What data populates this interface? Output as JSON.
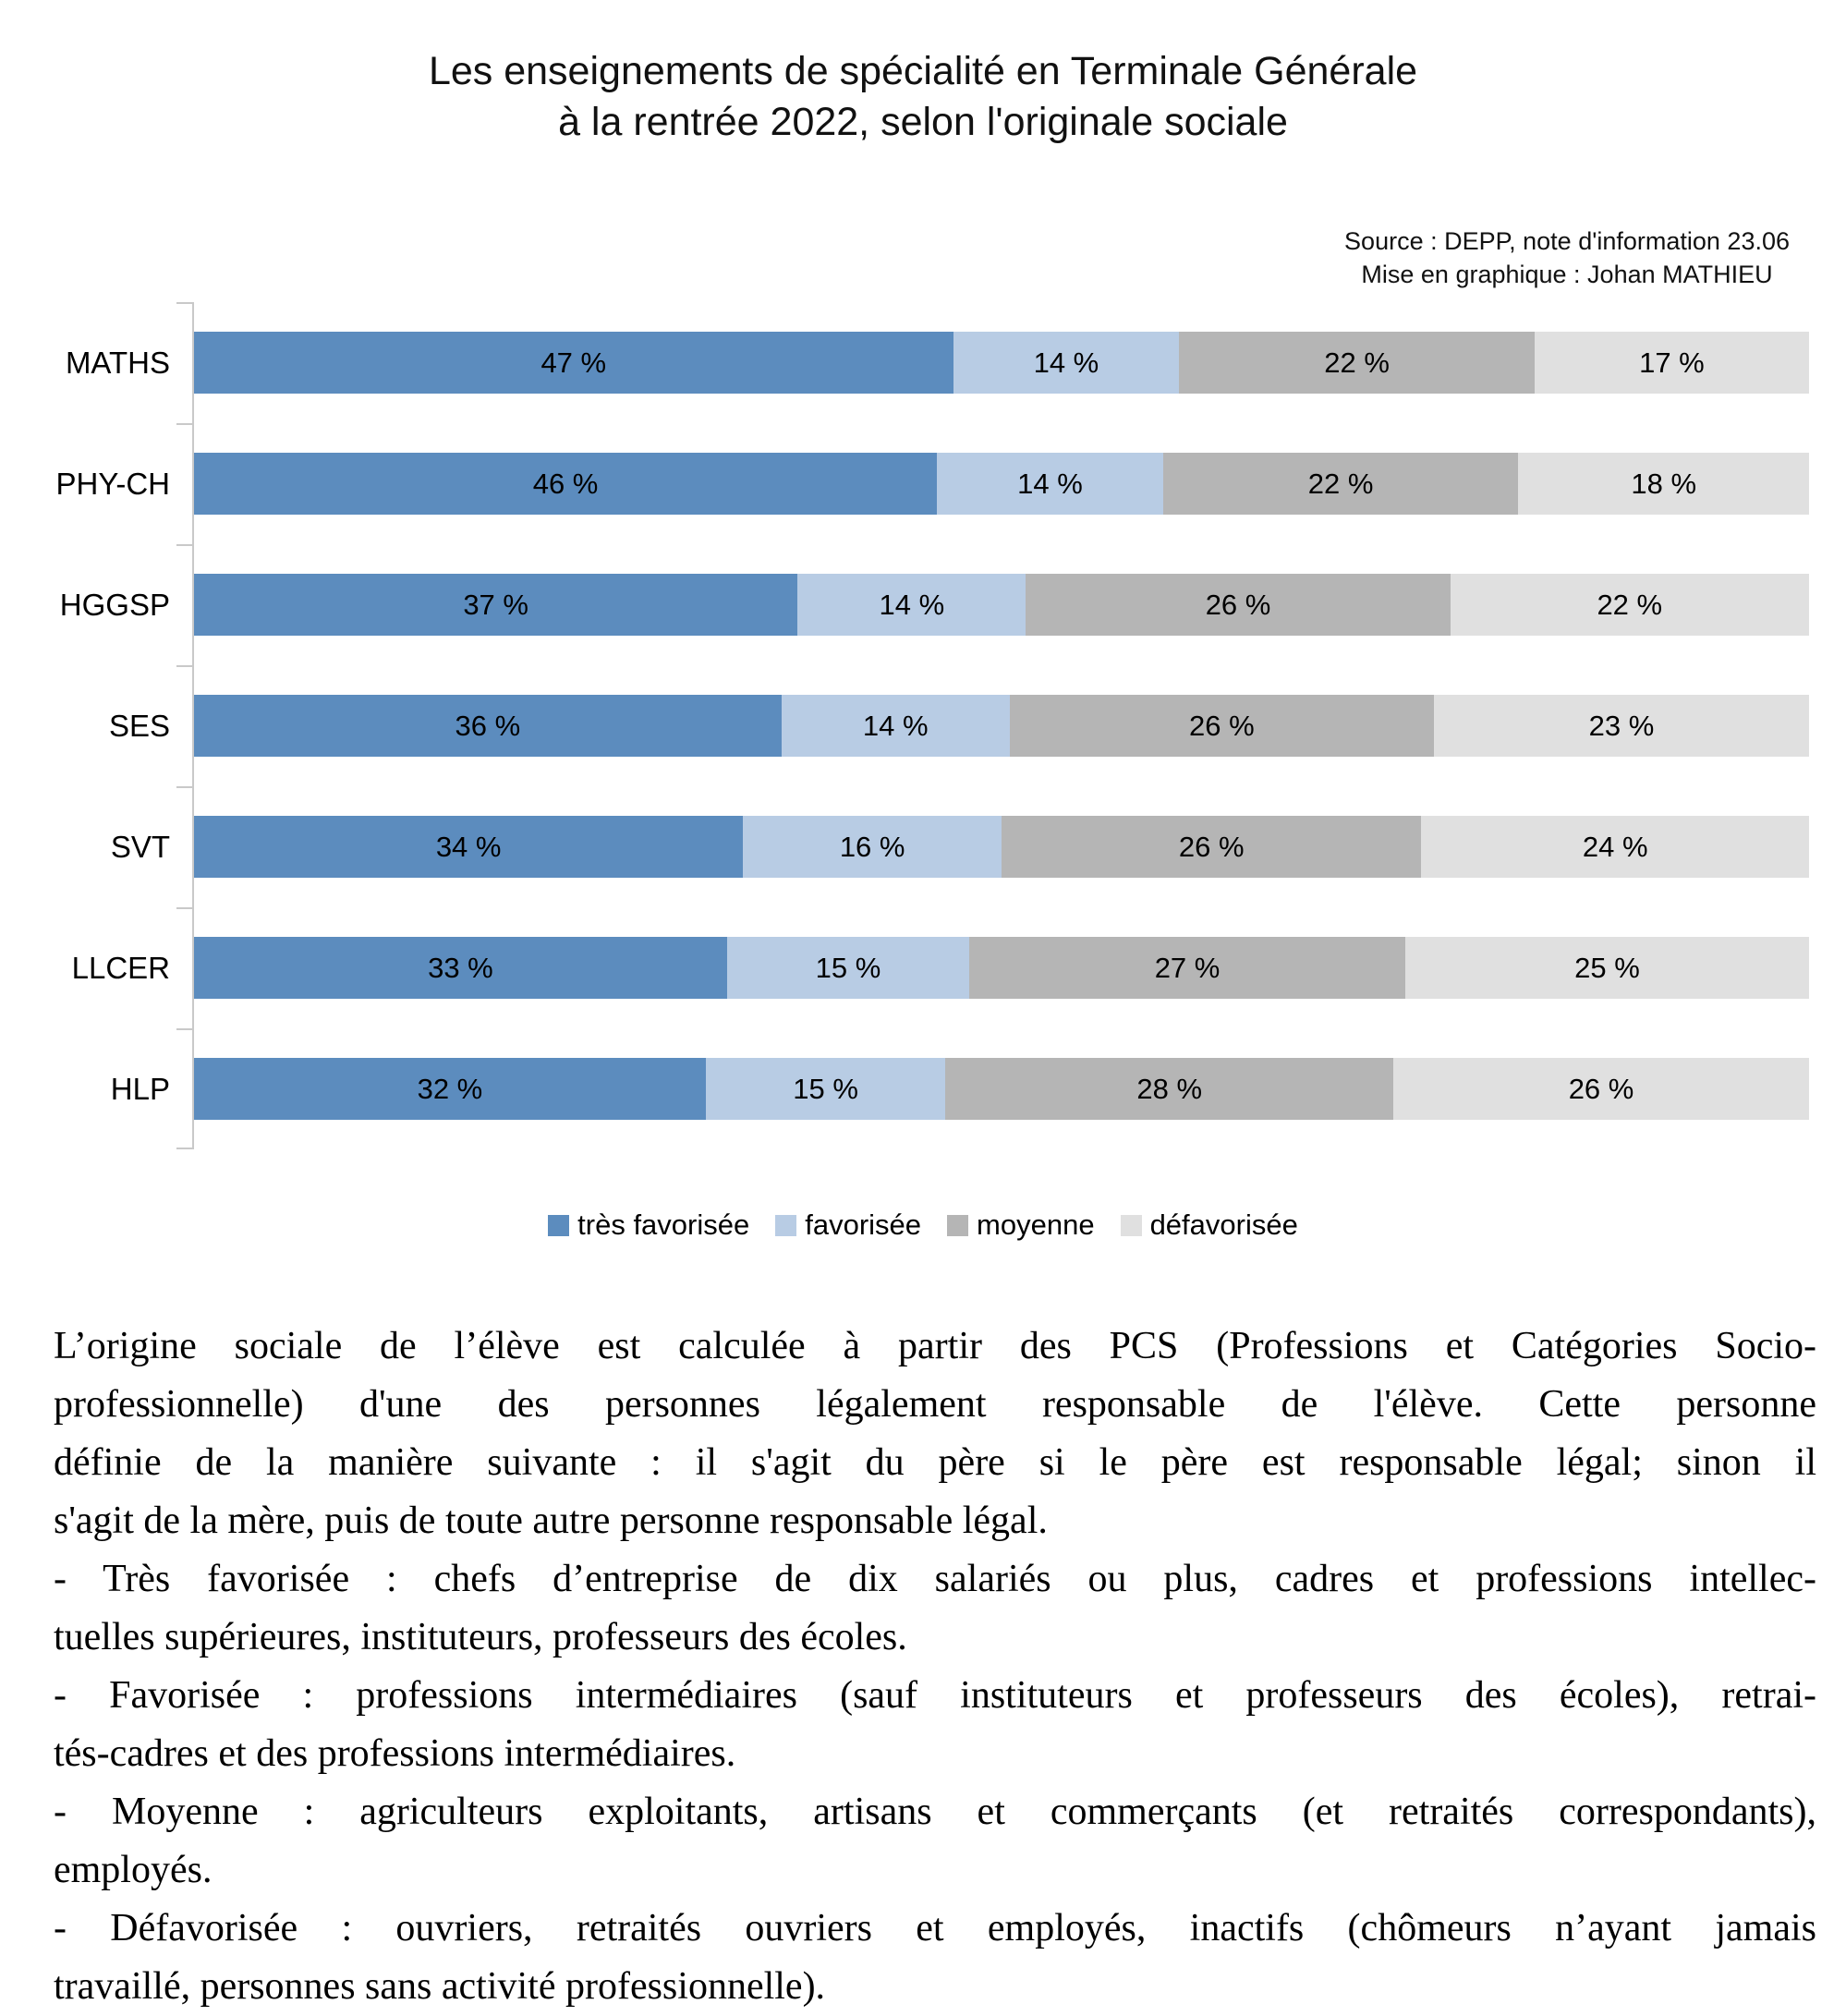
{
  "title": {
    "line1": "Les enseignements de spécialité en Terminale Générale",
    "line2": "à la rentrée 2022, selon l'originale sociale"
  },
  "source": {
    "line1": "Source : DEPP, note d'information 23.06",
    "line2": "Mise en graphique : Johan MATHIEU"
  },
  "chart_data": {
    "type": "bar",
    "orientation": "horizontal",
    "stacked": true,
    "unit": "%",
    "value_suffix": " %",
    "title": "Les enseignements de spécialité en Terminale Générale à la rentrée 2022, selon l'originale sociale",
    "categories": [
      "MATHS",
      "PHY-CH",
      "HGGSP",
      "SES",
      "SVT",
      "LLCER",
      "HLP"
    ],
    "series": [
      {
        "name": "très favorisée",
        "color": "#5C8CBE",
        "values": [
          47,
          46,
          37,
          36,
          34,
          33,
          32
        ]
      },
      {
        "name": "favorisée",
        "color": "#B8CCE4",
        "values": [
          14,
          14,
          14,
          14,
          16,
          15,
          15
        ]
      },
      {
        "name": "moyenne",
        "color": "#B5B5B5",
        "values": [
          22,
          22,
          26,
          26,
          26,
          27,
          28
        ]
      },
      {
        "name": "défavorisée",
        "color": "#E0E0E0",
        "values": [
          17,
          18,
          22,
          23,
          24,
          25,
          26
        ]
      }
    ],
    "legend_position": "bottom",
    "grid": false,
    "axis_color": "#C9C9C9",
    "xlim": [
      0,
      100
    ]
  },
  "notes": {
    "lines": [
      {
        "text": "L’origine sociale de l’élève est calculée à partir des PCS (Professions et Catégories Socio-",
        "justified": true
      },
      {
        "text": "professionnelle) d'une des personnes légalement responsable de l'élève. Cette personne",
        "justified": true
      },
      {
        "text": "définie de la manière suivante : il s'agit du père si le père est responsable légal; sinon il",
        "justified": true
      },
      {
        "text": "s'agit de la mère, puis de toute autre personne responsable légal.",
        "justified": false
      },
      {
        "text": "- Très favorisée : chefs d’entreprise de dix salariés ou plus, cadres et professions intellec-",
        "justified": true
      },
      {
        "text": "tuelles supérieures, instituteurs, professeurs des écoles.",
        "justified": false
      },
      {
        "text": "- Favorisée : professions intermédiaires (sauf instituteurs et professeurs des écoles), retrai-",
        "justified": true
      },
      {
        "text": "tés-cadres et des professions intermédiaires.",
        "justified": false
      },
      {
        "text": "- Moyenne : agriculteurs exploitants, artisans et commerçants (et retraités correspondants),",
        "justified": true
      },
      {
        "text": "employés.",
        "justified": false
      },
      {
        "text": "- Défavorisée : ouvriers, retraités ouvriers et employés, inactifs (chômeurs n’ayant jamais",
        "justified": true
      },
      {
        "text": "travaillé, personnes sans activité professionnelle).",
        "justified": false
      }
    ]
  }
}
